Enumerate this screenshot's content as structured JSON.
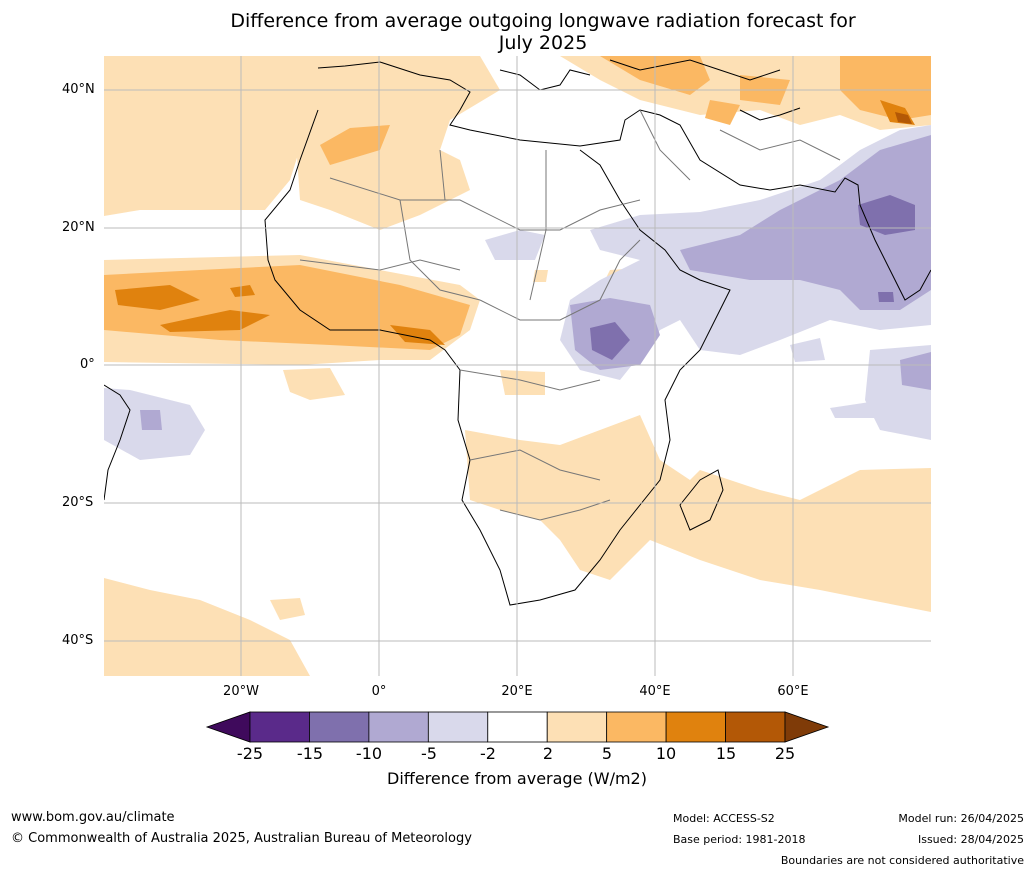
{
  "title_line1": "Difference from average outgoing longwave radiation forecast for",
  "title_line2": "July 2025",
  "lat_labels": [
    "40°N",
    "20°N",
    "0°",
    "20°S",
    "40°S"
  ],
  "lon_labels": [
    "20°W",
    "0°",
    "20°E",
    "40°E",
    "60°E"
  ],
  "colorbar": {
    "label": "Difference from average (W/m2)",
    "ticks": [
      "-25",
      "-15",
      "-10",
      "-5",
      "-2",
      "2",
      "5",
      "10",
      "15",
      "25"
    ],
    "colors": [
      "#3f0a5c",
      "#5a2a8a",
      "#7f70ad",
      "#b0a9d2",
      "#d9d9eb",
      "#ffffff",
      "#fde0b5",
      "#fbb863",
      "#e0820e",
      "#b35806",
      "#7f3b08"
    ]
  },
  "footer": {
    "website": "www.bom.gov.au/climate",
    "copyright": "© Commonwealth of Australia 2025, Australian Bureau of Meteorology",
    "model": "Model: ACCESS-S2",
    "base_period": "Base period: 1981-2018",
    "model_run": "Model run: 26/04/2025",
    "issued": "Issued: 28/04/2025",
    "disclaimer": "Boundaries are not considered authoritative"
  }
}
